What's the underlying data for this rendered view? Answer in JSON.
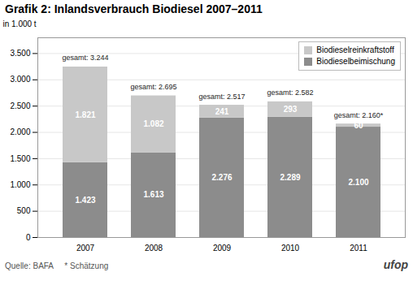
{
  "chart_data": {
    "type": "bar",
    "title": "Grafik 2: Inlandsverbrauch Biodiesel 2007–2011",
    "ylabel": "in 1.000 t",
    "categories": [
      "2007",
      "2008",
      "2009",
      "2010",
      "2011"
    ],
    "stacked": true,
    "data_labels": true,
    "series": [
      {
        "name": "Biodieselbeimischung",
        "color": "#8c8c8c",
        "values": [
          1423,
          1613,
          2276,
          2289,
          2100
        ],
        "value_labels": [
          "1.423",
          "1.613",
          "2.276",
          "2.289",
          "2.100"
        ]
      },
      {
        "name": "Biodieselreinkraftstoff",
        "color": "#c8c8c8",
        "values": [
          1821,
          1082,
          241,
          293,
          60
        ],
        "value_labels": [
          "1.821",
          "1.082",
          "241",
          "293",
          "60"
        ]
      }
    ],
    "annotations": [
      {
        "x": "2007",
        "y": 3244,
        "text": "gesamt: 3.244"
      },
      {
        "x": "2008",
        "y": 2695,
        "text": "gesamt: 2.695"
      },
      {
        "x": "2009",
        "y": 2517,
        "text": "gesamt: 2.517"
      },
      {
        "x": "2010",
        "y": 2582,
        "text": "gesamt: 2.582"
      },
      {
        "x": "2011",
        "y": 2160,
        "text": "gesamt: 2.160*"
      },
      {
        "text": "Quelle: BAFA     * Schätzung"
      },
      {
        "text": "ufop"
      }
    ],
    "ylim": [
      0,
      3800
    ],
    "yticks": [
      0,
      500,
      {
        "value": 1000,
        "label": "1.000"
      },
      {
        "value": 1500,
        "label": "1.500"
      },
      {
        "value": 2000,
        "label": "2.000"
      },
      {
        "value": 2500,
        "label": "2.500"
      },
      {
        "value": 3000,
        "label": "3.000"
      },
      {
        "value": 3500,
        "label": "3.500"
      }
    ],
    "grid": true,
    "legend": "upper right"
  }
}
